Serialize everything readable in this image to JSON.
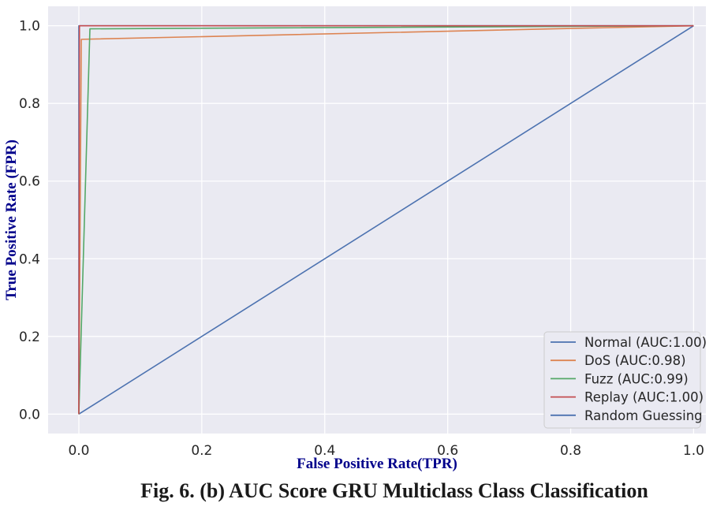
{
  "chart_data": {
    "type": "line",
    "xlabel": "False Positive Rate(TPR)",
    "ylabel": "True Positive Rate (FPR)",
    "xlim": [
      -0.05,
      1.02
    ],
    "ylim": [
      -0.05,
      1.05
    ],
    "xticks": [
      "0.0",
      "0.2",
      "0.4",
      "0.6",
      "0.8",
      "1.0"
    ],
    "yticks": [
      "0.0",
      "0.2",
      "0.4",
      "0.6",
      "0.8",
      "1.0"
    ],
    "grid": true,
    "legend_position": "lower-right",
    "series": [
      {
        "name": "Normal (AUC:1.00)",
        "color": "#4c72b0",
        "x": [
          0.0,
          0.0,
          1.0
        ],
        "y": [
          0.0,
          1.0,
          1.0
        ]
      },
      {
        "name": "DoS (AUC:0.98)",
        "color": "#dd8452",
        "x": [
          0.0,
          0.004,
          1.0
        ],
        "y": [
          0.0,
          0.965,
          1.0
        ]
      },
      {
        "name": "Fuzz (AUC:0.99)",
        "color": "#55a868",
        "x": [
          0.0,
          0.018,
          1.0
        ],
        "y": [
          0.0,
          0.992,
          1.0
        ]
      },
      {
        "name": "Replay (AUC:1.00)",
        "color": "#c44e52",
        "x": [
          0.0,
          0.001,
          1.0
        ],
        "y": [
          0.0,
          1.0,
          1.0
        ]
      },
      {
        "name": "Random Guessing",
        "color": "#4c72b0",
        "x": [
          0.0,
          1.0
        ],
        "y": [
          0.0,
          1.0
        ]
      }
    ]
  },
  "caption": "Fig. 6. (b) AUC Score GRU Multiclass Class Classification"
}
